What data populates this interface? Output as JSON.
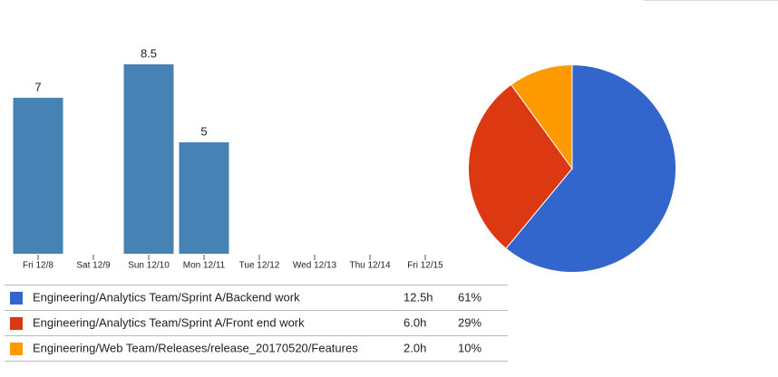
{
  "chart_data": [
    {
      "type": "bar",
      "categories": [
        "Fri 12/8",
        "Sat 12/9",
        "Sun 12/10",
        "Mon 12/11",
        "Tue 12/12",
        "Wed 12/13",
        "Thu 12/14",
        "Fri 12/15"
      ],
      "values": [
        7,
        null,
        8.5,
        5,
        null,
        null,
        null,
        null
      ],
      "color": "#4682b4"
    },
    {
      "type": "pie",
      "categories": [
        "Engineering/Analytics Team/Sprint A/Backend work",
        "Engineering/Analytics Team/Sprint A/Front end work",
        "Engineering/Web Team/Releases/release_20170520/Features"
      ],
      "values": [
        61,
        29,
        10
      ],
      "value_labels": [
        "61%",
        "29%",
        "10%"
      ],
      "hours": [
        "12.5h",
        "6.0h",
        "2.0h"
      ],
      "colors": [
        "#3366cc",
        "#dc3912",
        "#ff9900"
      ]
    }
  ]
}
